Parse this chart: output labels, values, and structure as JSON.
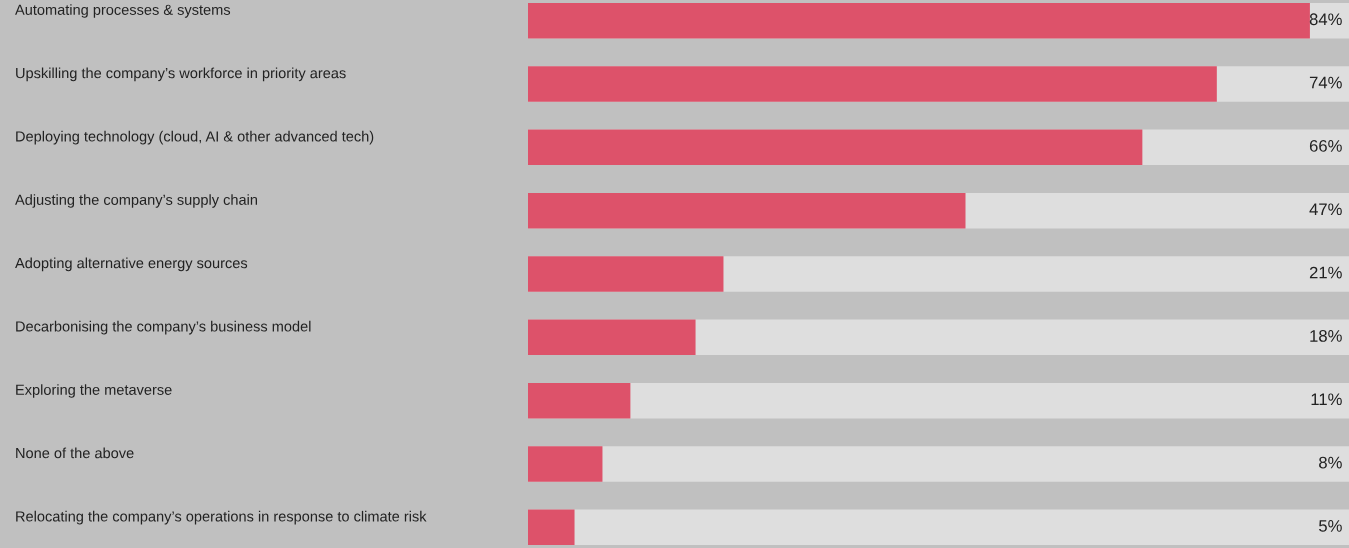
{
  "chart_data": {
    "type": "bar",
    "orientation": "horizontal",
    "categories": [
      "Automating processes & systems",
      "Upskilling the company’s workforce in priority areas",
      "Deploying technology (cloud, AI & other advanced tech)",
      "Adjusting the company’s supply chain",
      "Adopting alternative energy sources",
      "Decarbonising the company’s business model",
      "Exploring the metaverse",
      "None of the above",
      "Relocating the company’s operations in response to climate risk"
    ],
    "values": [
      84,
      74,
      66,
      47,
      21,
      18,
      11,
      8,
      5
    ],
    "value_labels": [
      "84%",
      "74%",
      "66%",
      "47%",
      "21%",
      "18%",
      "11%",
      "8%",
      "5%"
    ],
    "color": "#dd526a"
  }
}
